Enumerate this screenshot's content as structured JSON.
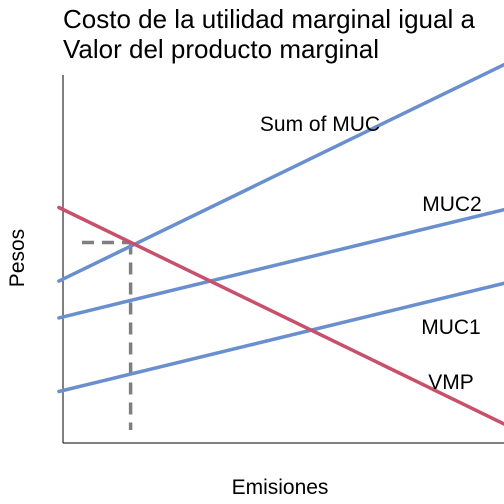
{
  "chart_data": {
    "type": "line",
    "title": [
      "Costo de la utilidad marginal igual a",
      "Valor del producto marginal"
    ],
    "xlabel": "Emisiones",
    "ylabel": "Pesos",
    "xlim": [
      0,
      10
    ],
    "ylim": [
      0,
      10
    ],
    "grid": false,
    "legend": "none",
    "series": [
      {
        "name": "Sum of MUC",
        "color": "#6A8FCF",
        "x": [
          0.5,
          10
        ],
        "y": [
          4.4,
          10.4
        ]
      },
      {
        "name": "MUC2",
        "color": "#6A8FCF",
        "x": [
          0.5,
          10
        ],
        "y": [
          3.4,
          6.4
        ]
      },
      {
        "name": "MUC1",
        "color": "#6A8FCF",
        "x": [
          0.5,
          10
        ],
        "y": [
          1.4,
          4.4
        ]
      },
      {
        "name": "VMP",
        "color": "#C8506A",
        "x": [
          0.5,
          10
        ],
        "y": [
          6.4,
          0.4
        ]
      }
    ],
    "equilibrium": {
      "x": 2.0,
      "y": 5.45,
      "color": "#7F7F7F"
    }
  }
}
